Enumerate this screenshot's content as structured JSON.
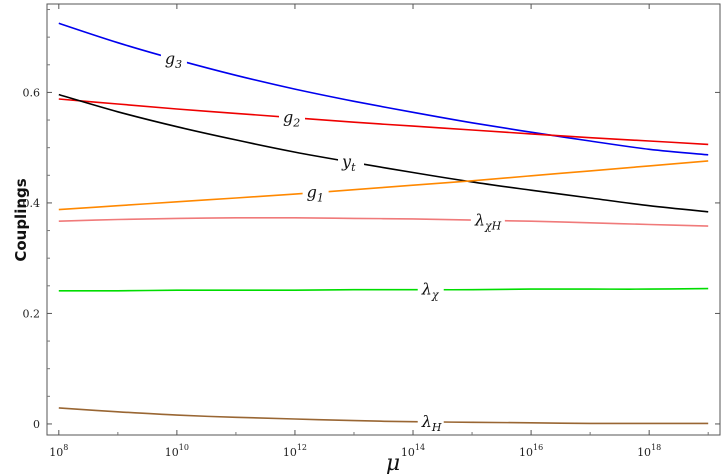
{
  "chart_data": {
    "type": "line",
    "title": "",
    "xlabel": "μ",
    "ylabel": "Couplings",
    "x_scale": "log10",
    "xlim_log10": [
      7.8,
      19.2
    ],
    "ylim": [
      -0.02,
      0.76
    ],
    "xticks": [
      {
        "base": "10",
        "exp": "8"
      },
      {
        "base": "10",
        "exp": "10"
      },
      {
        "base": "10",
        "exp": "12"
      },
      {
        "base": "10",
        "exp": "14"
      },
      {
        "base": "10",
        "exp": "16"
      },
      {
        "base": "10",
        "exp": "18"
      }
    ],
    "xtick_values_log10": [
      8,
      10,
      12,
      14,
      16,
      18
    ],
    "yticks": [
      "0",
      "0.2",
      "0.4",
      "0.6"
    ],
    "ytick_values": [
      0,
      0.2,
      0.4,
      0.6
    ],
    "grid": false,
    "frame": "box",
    "x_log10": [
      8,
      9,
      10,
      11,
      12,
      13,
      14,
      15,
      16,
      17,
      18,
      19
    ],
    "series": [
      {
        "name": "g3",
        "label_main": "g",
        "label_sub": "3",
        "color": "#0000ee",
        "label_at_log10": 9.95,
        "values": [
          0.725,
          0.69,
          0.659,
          0.631,
          0.606,
          0.584,
          0.564,
          0.545,
          0.528,
          0.512,
          0.497,
          0.487
        ]
      },
      {
        "name": "g2",
        "label_main": "g",
        "label_sub": "2",
        "color": "#ee0000",
        "label_at_log10": 11.95,
        "values": [
          0.588,
          0.579,
          0.57,
          0.562,
          0.554,
          0.546,
          0.539,
          0.532,
          0.525,
          0.518,
          0.512,
          0.506
        ]
      },
      {
        "name": "yt",
        "label_main": "y",
        "label_sub": "t",
        "color": "#000000",
        "label_at_log10": 12.95,
        "values": [
          0.596,
          0.565,
          0.538,
          0.514,
          0.492,
          0.473,
          0.455,
          0.438,
          0.423,
          0.409,
          0.395,
          0.384
        ]
      },
      {
        "name": "g1",
        "label_main": "g",
        "label_sub": "1",
        "color": "#ff8800",
        "label_at_log10": 12.35,
        "values": [
          0.388,
          0.395,
          0.402,
          0.409,
          0.416,
          0.424,
          0.432,
          0.44,
          0.449,
          0.458,
          0.467,
          0.476
        ]
      },
      {
        "name": "λχH",
        "label_main": "λ",
        "label_sub": "χH",
        "color": "#f07a7a",
        "label_at_log10": 15.2,
        "values": [
          0.367,
          0.37,
          0.372,
          0.373,
          0.373,
          0.372,
          0.371,
          0.369,
          0.367,
          0.364,
          0.361,
          0.358
        ]
      },
      {
        "name": "λχ",
        "label_main": "λ",
        "label_sub": "χ",
        "color": "#00dd00",
        "label_at_log10": 14.3,
        "values": [
          0.241,
          0.241,
          0.242,
          0.242,
          0.242,
          0.243,
          0.243,
          0.243,
          0.244,
          0.244,
          0.244,
          0.245
        ]
      },
      {
        "name": "λH",
        "label_main": "λ",
        "label_sub": "H",
        "color": "#996633",
        "label_at_log10": 14.3,
        "values": [
          0.029,
          0.022,
          0.016,
          0.012,
          0.009,
          0.006,
          0.004,
          0.003,
          0.002,
          0.001,
          0.001,
          0.001
        ]
      }
    ]
  }
}
